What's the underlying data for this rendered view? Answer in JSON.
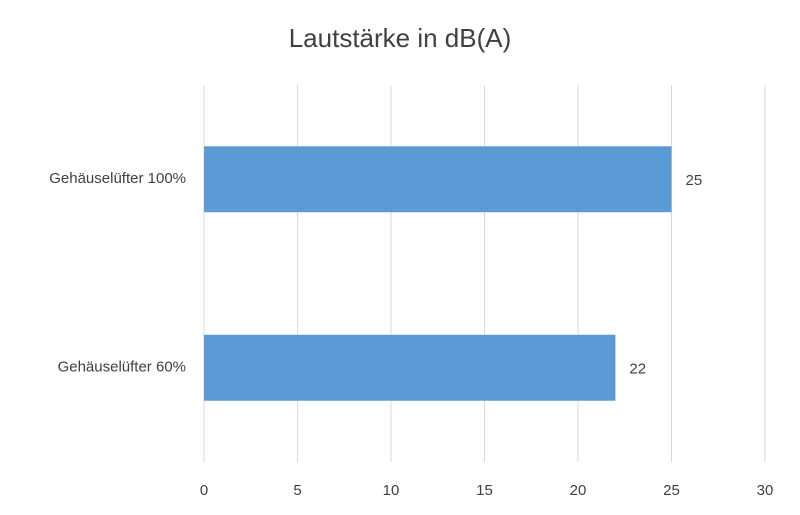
{
  "chart_data": {
    "type": "bar",
    "orientation": "horizontal",
    "title": "Lautstärke in dB(A)",
    "categories": [
      "Gehäuselüfter 100%",
      "Gehäuselüfter 60%"
    ],
    "values": [
      25,
      22
    ],
    "color": "#5b9bd5",
    "xlim": [
      0,
      30
    ],
    "xticks": [
      0,
      5,
      10,
      15,
      20,
      25,
      30
    ],
    "grid": true,
    "data_labels": true
  }
}
